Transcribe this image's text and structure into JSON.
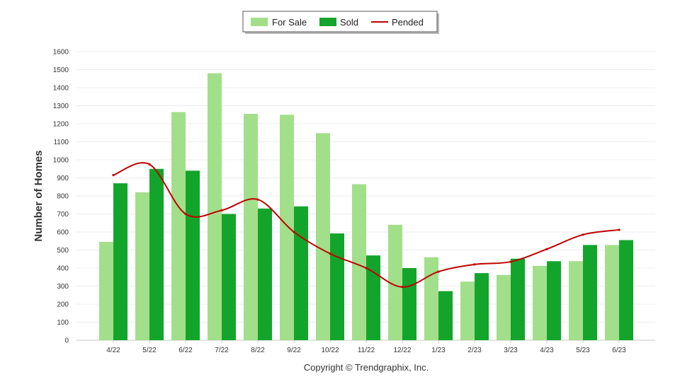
{
  "chart_data": {
    "type": "bar",
    "categories": [
      "4/22",
      "5/22",
      "6/22",
      "7/22",
      "8/22",
      "9/22",
      "10/22",
      "11/22",
      "12/22",
      "1/23",
      "2/23",
      "3/23",
      "4/23",
      "5/23",
      "6/23"
    ],
    "series": [
      {
        "name": "For Sale",
        "kind": "bar",
        "color": "#a2df8a",
        "values": [
          545,
          820,
          1265,
          1480,
          1255,
          1250,
          1148,
          865,
          640,
          460,
          325,
          362,
          412,
          438,
          528
        ]
      },
      {
        "name": "Sold",
        "kind": "bar",
        "color": "#13a52b",
        "values": [
          870,
          950,
          940,
          700,
          730,
          742,
          592,
          470,
          400,
          272,
          372,
          452,
          438,
          528,
          555
        ]
      },
      {
        "name": "Pended",
        "kind": "line",
        "color": "#c00000",
        "values": [
          915,
          975,
          700,
          720,
          780,
          600,
          480,
          400,
          295,
          380,
          420,
          435,
          505,
          585,
          612
        ]
      }
    ],
    "title": "",
    "xlabel": "",
    "ylabel": "Number of Homes",
    "ylim": [
      0,
      1600
    ],
    "yticks": [
      "0",
      "100",
      "200",
      "300",
      "400",
      "500",
      "600",
      "700",
      "800",
      "900",
      "1000",
      "1100",
      "1200",
      "1300",
      "1400",
      "1500",
      "1600"
    ],
    "grid": true,
    "legend_position": "top-center"
  },
  "footer": {
    "copyright": "Copyright © Trendgraphix, Inc."
  }
}
